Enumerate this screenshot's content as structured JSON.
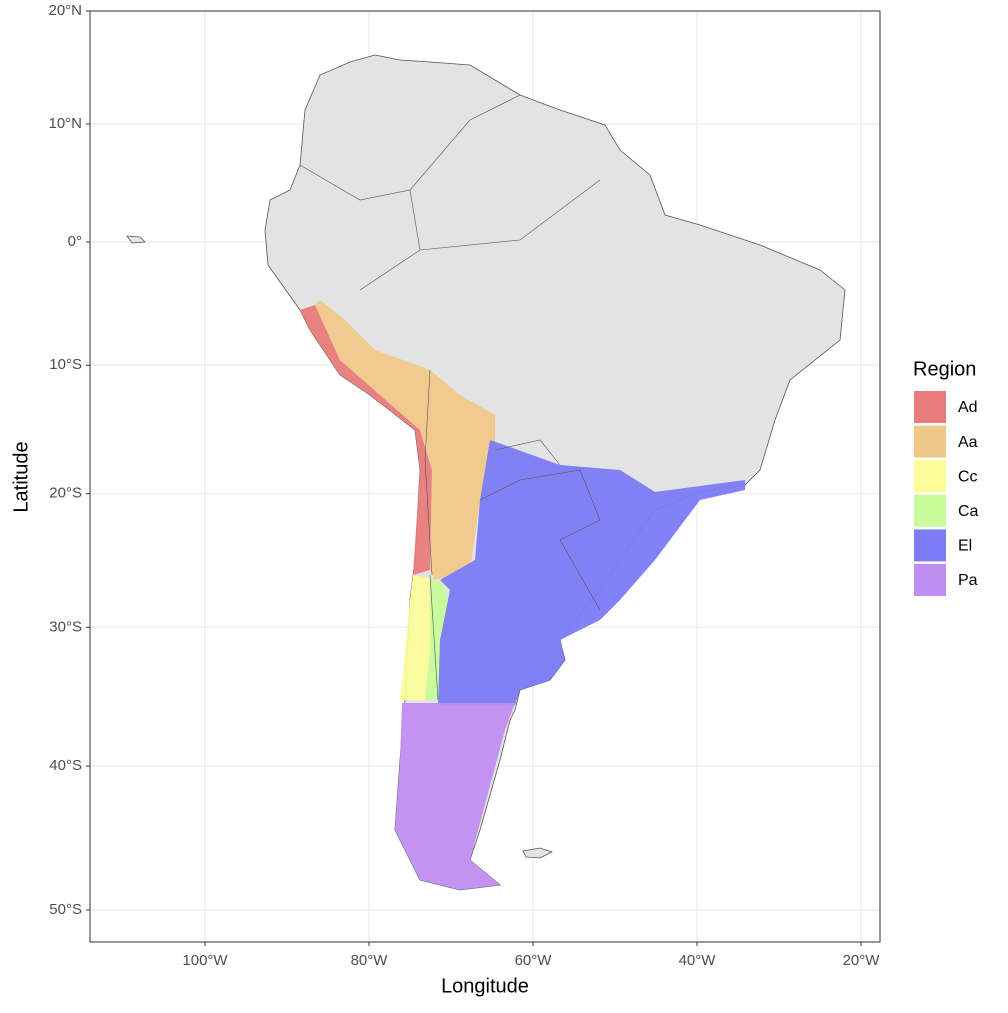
{
  "map": {
    "x_label": "Longitude",
    "y_label": "Latitude",
    "xticks": [
      {
        "value": -100,
        "label": "100°W"
      },
      {
        "value": -80,
        "label": "80°W"
      },
      {
        "value": -60,
        "label": "60°W"
      },
      {
        "value": -40,
        "label": "40°W"
      },
      {
        "value": -20,
        "label": "20°W"
      }
    ],
    "yticks": [
      {
        "value": 20,
        "label": "20°N"
      },
      {
        "value": 10,
        "label": "10°N"
      },
      {
        "value": 0,
        "label": "0°"
      },
      {
        "value": -10,
        "label": "10°S"
      },
      {
        "value": -20,
        "label": "20°S"
      },
      {
        "value": -30,
        "label": "30°S"
      },
      {
        "value": -40,
        "label": "40°S"
      },
      {
        "value": -50,
        "label": "50°S"
      }
    ],
    "legend_title": "Region",
    "regions": [
      {
        "name": "Ad",
        "color": "#e97b7b"
      },
      {
        "name": "Aa",
        "color": "#f0c88a"
      },
      {
        "name": "Cc",
        "color": "#fbfb9a"
      },
      {
        "name": "Ca",
        "color": "#c8fb9a"
      },
      {
        "name": "El",
        "color": "#7b7bf5"
      },
      {
        "name": "Pa",
        "color": "#c08ef0"
      }
    ]
  }
}
